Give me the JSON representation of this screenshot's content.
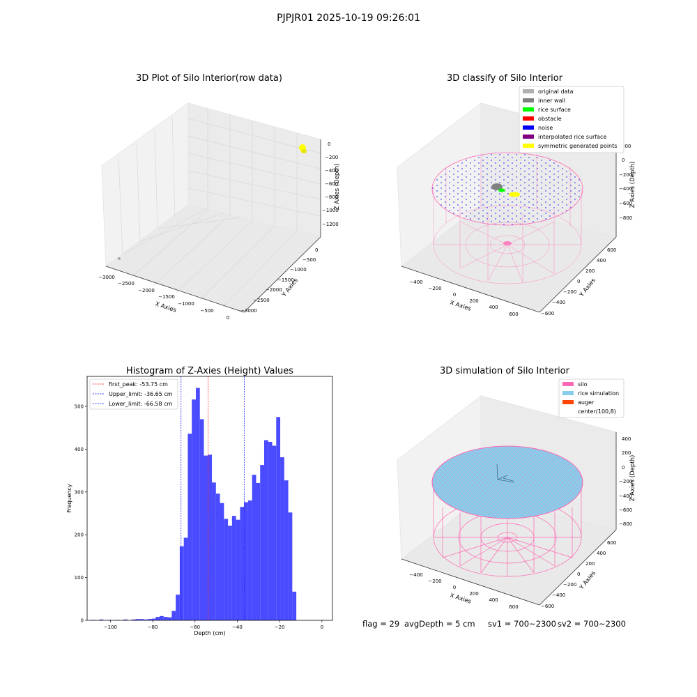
{
  "suptitle": "PJPJR01 2025-10-19 09:26:01",
  "footer": {
    "flag": "flag = 29",
    "avg_depth": "avgDepth = 5 cm",
    "sv1": "sv1 = 700~2300",
    "sv2": "sv2 = 700~2300"
  },
  "colors": {
    "histogram_bar": "#4a4aff",
    "first_peak_line": "#ff0000",
    "limit_lines": "#0000ff",
    "silo": "#ff69b4",
    "rice_simulation": "#87ceeb",
    "auger": "#ff4500",
    "original_data": "#b0b0b0",
    "inner_wall": "#808080",
    "rice_surface": "#00ff00",
    "obstacle": "#ff0000",
    "noise": "#0000ff",
    "interpolated_rice_surface": "#800080",
    "symmetric_generated_points": "#ffff00"
  },
  "chart_data": [
    {
      "type": "scatter",
      "title": "3D Plot of Silo Interior(row data)",
      "xlabel": "X Axies",
      "ylabel": "Y Axies",
      "zlabel": "Z Axies (Depth)",
      "xticks": [
        "−3000",
        "−2500",
        "−2000",
        "−1500",
        "−1000",
        "−500",
        "0"
      ],
      "yticks": [
        "0",
        "−500",
        "−1000",
        "−1500",
        "−2000",
        "−2500",
        "−3000"
      ],
      "zticks": [
        "0",
        "−200",
        "−400",
        "−600",
        "−800",
        "−1000",
        "−1200"
      ]
    },
    {
      "type": "scatter",
      "title": "3D classify of Silo Interior",
      "xlabel": "X Axies",
      "ylabel": "Y Axies",
      "zlabel": "Z Axies (Depth)",
      "xticks": [
        "−400",
        "−200",
        "0",
        "200",
        "400",
        "600"
      ],
      "yticks": [
        "600",
        "400",
        "200",
        "0",
        "−200",
        "−400",
        "−600"
      ],
      "zticks": [
        "200",
        "0",
        "−200",
        "−400",
        "−600",
        "−800"
      ],
      "legend": [
        "original data",
        "inner wall",
        "rice surface",
        "obstacle",
        "noise",
        "interpolated rice surface",
        "symmetric generated points"
      ],
      "legend_position": "top-right"
    },
    {
      "type": "bar",
      "title": "Histogram of Z-Axies (Height) Values",
      "xlabel": "Depth (cm)",
      "ylabel": "Frequency",
      "xlim": [
        -111,
        5
      ],
      "ylim": [
        0,
        570
      ],
      "xticks": [
        -100,
        -80,
        -60,
        -40,
        -20,
        0
      ],
      "xtick_labels": [
        "−100",
        "−80",
        "−60",
        "−40",
        "−20",
        "0"
      ],
      "yticks": [
        0,
        100,
        200,
        300,
        400,
        500
      ],
      "yticks_labels": [
        "0",
        "100",
        "200",
        "300",
        "400",
        "500"
      ],
      "bin_start": -109,
      "bin_width": 1.9,
      "values": [
        1,
        0,
        2,
        0,
        1,
        0,
        1,
        0,
        2,
        0,
        2,
        3,
        3,
        2,
        3,
        4,
        8,
        10,
        8,
        7,
        22,
        60,
        173,
        193,
        436,
        516,
        543,
        470,
        385,
        387,
        322,
        296,
        274,
        237,
        221,
        244,
        235,
        265,
        276,
        280,
        340,
        321,
        363,
        421,
        417,
        408,
        475,
        381,
        327,
        252,
        67
      ],
      "lines": [
        {
          "label": "first_peak: -53.75 cm",
          "x": -53.75,
          "style": "dashed",
          "color": "#ff0000"
        },
        {
          "label": "Upper_limit: -36.65 cm",
          "x": -36.65,
          "style": "dashed",
          "color": "#0000ff"
        },
        {
          "label": "Lower_limit: -66.58 cm",
          "x": -66.58,
          "style": "dashed",
          "color": "#0000ff"
        }
      ],
      "legend_position": "top-left"
    },
    {
      "type": "scatter",
      "title": "3D simulation of Silo Interior",
      "xlabel": "X Axies",
      "ylabel": "Y Axies",
      "zlabel": "Z Axies (Depth)",
      "xticks": [
        "−400",
        "−200",
        "0",
        "200",
        "400",
        "600"
      ],
      "yticks": [
        "600",
        "400",
        "200",
        "0",
        "−200",
        "−400",
        "−600"
      ],
      "zticks": [
        "400",
        "200",
        "0",
        "−200",
        "−400",
        "−600",
        "−800"
      ],
      "legend": [
        "silo",
        "rice simulation",
        "auger",
        "center(100,8)"
      ],
      "legend_position": "top-right"
    }
  ]
}
